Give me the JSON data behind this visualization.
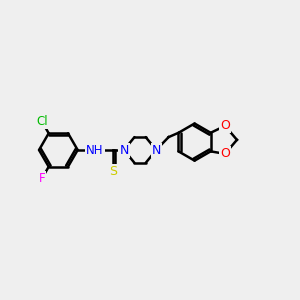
{
  "bg_color": "#efefef",
  "bond_color": "#000000",
  "bond_width": 1.8,
  "atom_colors": {
    "N": "#0000ff",
    "NH": "#0000cc",
    "Cl": "#00bb00",
    "F": "#ff00ff",
    "S": "#cccc00",
    "O": "#ff0000",
    "C": "#000000"
  },
  "font_size": 9,
  "fig_size": [
    3.0,
    3.0
  ],
  "dpi": 100
}
